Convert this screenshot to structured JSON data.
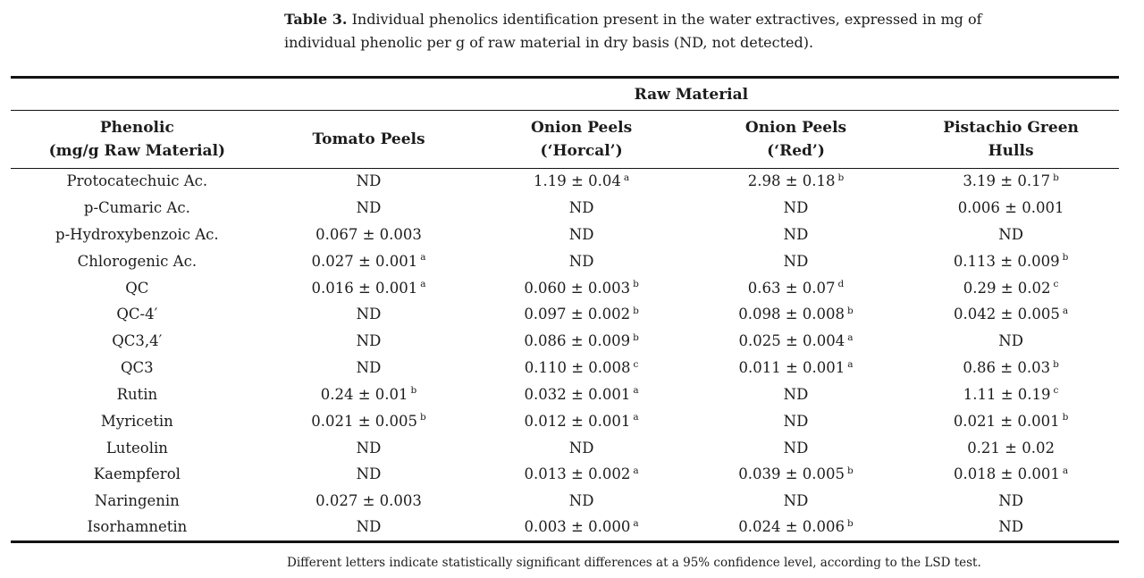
{
  "page": {
    "background": "#ffffff",
    "text_color": "#1c1c1c",
    "rule_color": "#131313"
  },
  "caption": {
    "label": "Table 3.",
    "text": "Individual phenolics identification present in the water extractives, expressed in mg of individual phenolic per g of raw material in dry basis (ND, not detected)."
  },
  "table": {
    "group_header": "Raw Material",
    "columns": [
      "Phenolic\n(mg/g Raw Material)",
      "Tomato Peels",
      "Onion Peels\n(‘Horcal’)",
      "Onion Peels\n(‘Red’)",
      "Pistachio Green\nHulls"
    ],
    "rows": [
      {
        "phenolic": "Protocatechuic Ac.",
        "values": [
          {
            "v": "ND"
          },
          {
            "v": "1.19 ± 0.04",
            "sup": "a"
          },
          {
            "v": "2.98 ± 0.18",
            "sup": "b"
          },
          {
            "v": "3.19 ± 0.17",
            "sup": "b"
          }
        ]
      },
      {
        "phenolic": "p-Cumaric Ac.",
        "values": [
          {
            "v": "ND"
          },
          {
            "v": "ND"
          },
          {
            "v": "ND"
          },
          {
            "v": "0.006 ± 0.001"
          }
        ]
      },
      {
        "phenolic": "p-Hydroxybenzoic Ac.",
        "values": [
          {
            "v": "0.067 ± 0.003"
          },
          {
            "v": "ND"
          },
          {
            "v": "ND"
          },
          {
            "v": "ND"
          }
        ]
      },
      {
        "phenolic": "Chlorogenic Ac.",
        "values": [
          {
            "v": "0.027 ± 0.001",
            "sup": "a"
          },
          {
            "v": "ND"
          },
          {
            "v": "ND"
          },
          {
            "v": "0.113 ± 0.009",
            "sup": "b"
          }
        ]
      },
      {
        "phenolic": "QC",
        "values": [
          {
            "v": "0.016 ± 0.001",
            "sup": "a"
          },
          {
            "v": "0.060 ± 0.003",
            "sup": "b"
          },
          {
            "v": "0.63 ± 0.07",
            "sup": "d"
          },
          {
            "v": "0.29 ± 0.02",
            "sup": "c"
          }
        ]
      },
      {
        "phenolic": "QC-4′",
        "values": [
          {
            "v": "ND"
          },
          {
            "v": "0.097 ± 0.002",
            "sup": "b"
          },
          {
            "v": "0.098 ± 0.008",
            "sup": "b"
          },
          {
            "v": "0.042 ± 0.005",
            "sup": "a"
          }
        ]
      },
      {
        "phenolic": "QC3,4′",
        "values": [
          {
            "v": "ND"
          },
          {
            "v": "0.086 ± 0.009",
            "sup": "b"
          },
          {
            "v": "0.025 ± 0.004",
            "sup": "a"
          },
          {
            "v": "ND"
          }
        ]
      },
      {
        "phenolic": "QC3",
        "values": [
          {
            "v": "ND"
          },
          {
            "v": "0.110 ± 0.008",
            "sup": "c"
          },
          {
            "v": "0.011 ± 0.001",
            "sup": "a"
          },
          {
            "v": "0.86 ± 0.03",
            "sup": "b"
          }
        ]
      },
      {
        "phenolic": "Rutin",
        "values": [
          {
            "v": "0.24 ± 0.01",
            "sup": "b"
          },
          {
            "v": "0.032 ± 0.001",
            "sup": "a"
          },
          {
            "v": "ND"
          },
          {
            "v": "1.11 ± 0.19",
            "sup": "c"
          }
        ]
      },
      {
        "phenolic": "Myricetin",
        "values": [
          {
            "v": "0.021 ± 0.005",
            "sup": "b"
          },
          {
            "v": "0.012 ± 0.001",
            "sup": "a"
          },
          {
            "v": "ND"
          },
          {
            "v": "0.021 ± 0.001",
            "sup": "b"
          }
        ]
      },
      {
        "phenolic": "Luteolin",
        "values": [
          {
            "v": "ND"
          },
          {
            "v": "ND"
          },
          {
            "v": "ND"
          },
          {
            "v": "0.21 ± 0.02"
          }
        ]
      },
      {
        "phenolic": "Kaempferol",
        "values": [
          {
            "v": "ND"
          },
          {
            "v": "0.013 ± 0.002",
            "sup": "a"
          },
          {
            "v": "0.039 ± 0.005",
            "sup": "b"
          },
          {
            "v": "0.018 ± 0.001",
            "sup": "a"
          }
        ]
      },
      {
        "phenolic": "Naringenin",
        "values": [
          {
            "v": "0.027 ± 0.003"
          },
          {
            "v": "ND"
          },
          {
            "v": "ND"
          },
          {
            "v": "ND"
          }
        ]
      },
      {
        "phenolic": "Isorhamnetin",
        "values": [
          {
            "v": "ND"
          },
          {
            "v": "0.003 ± 0.000",
            "sup": "a"
          },
          {
            "v": "0.024 ± 0.006",
            "sup": "b"
          },
          {
            "v": "ND"
          }
        ]
      }
    ]
  },
  "footnote": "Different letters indicate statistically significant differences at a 95% confidence level, according to the LSD test."
}
